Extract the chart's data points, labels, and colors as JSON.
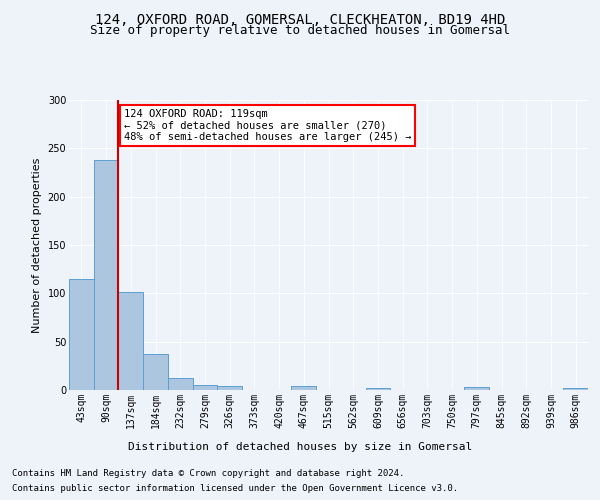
{
  "title_line1": "124, OXFORD ROAD, GOMERSAL, CLECKHEATON, BD19 4HD",
  "title_line2": "Size of property relative to detached houses in Gomersal",
  "xlabel": "Distribution of detached houses by size in Gomersal",
  "ylabel": "Number of detached properties",
  "bar_color": "#adc6e0",
  "bar_edge_color": "#5a9fd4",
  "categories": [
    "43sqm",
    "90sqm",
    "137sqm",
    "184sqm",
    "232sqm",
    "279sqm",
    "326sqm",
    "373sqm",
    "420sqm",
    "467sqm",
    "515sqm",
    "562sqm",
    "609sqm",
    "656sqm",
    "703sqm",
    "750sqm",
    "797sqm",
    "845sqm",
    "892sqm",
    "939sqm",
    "986sqm"
  ],
  "values": [
    115,
    238,
    101,
    37,
    12,
    5,
    4,
    0,
    0,
    4,
    0,
    0,
    2,
    0,
    0,
    0,
    3,
    0,
    0,
    0,
    2
  ],
  "ylim": [
    0,
    300
  ],
  "yticks": [
    0,
    50,
    100,
    150,
    200,
    250,
    300
  ],
  "red_line_x": 1.5,
  "annotation_text": "124 OXFORD ROAD: 119sqm\n← 52% of detached houses are smaller (270)\n48% of semi-detached houses are larger (245) →",
  "annotation_box_color": "white",
  "annotation_box_edgecolor": "red",
  "red_line_color": "#cc0000",
  "footer_line1": "Contains HM Land Registry data © Crown copyright and database right 2024.",
  "footer_line2": "Contains public sector information licensed under the Open Government Licence v3.0.",
  "background_color": "#eef2f9",
  "grid_color": "#ffffff",
  "title_fontsize": 10,
  "subtitle_fontsize": 9,
  "axis_label_fontsize": 8,
  "tick_fontsize": 7,
  "annotation_fontsize": 7.5,
  "footer_fontsize": 6.5
}
